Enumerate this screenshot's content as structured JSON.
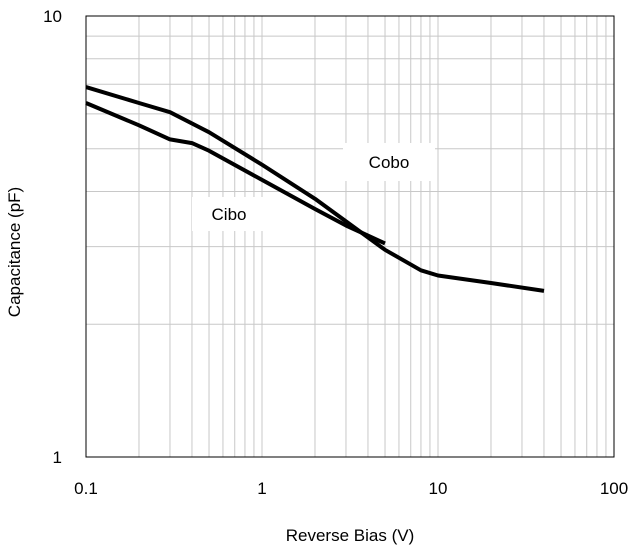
{
  "chart_data": {
    "type": "line",
    "title": "",
    "xlabel": "Reverse Bias (V)",
    "ylabel": "Capacitance (pF)",
    "x_scale": "log",
    "y_scale": "log",
    "xlim": [
      0.1,
      100
    ],
    "ylim": [
      1,
      10
    ],
    "x_ticks": [
      {
        "value": 0.1,
        "label": "0.1"
      },
      {
        "value": 1,
        "label": "1"
      },
      {
        "value": 10,
        "label": "10"
      },
      {
        "value": 100,
        "label": "100"
      }
    ],
    "y_ticks": [
      {
        "value": 1,
        "label": "1"
      },
      {
        "value": 10,
        "label": "10"
      }
    ],
    "grid": true,
    "colors": {
      "line": "#000000",
      "grid": "#c8c8c8",
      "frame": "#000000"
    },
    "series": [
      {
        "name": "Cobo",
        "x": [
          0.1,
          0.2,
          0.3,
          0.5,
          1,
          2,
          5,
          8,
          10,
          20,
          40
        ],
        "y": [
          6.9,
          6.35,
          6.05,
          5.45,
          4.6,
          3.85,
          2.95,
          2.65,
          2.58,
          2.48,
          2.38
        ]
      },
      {
        "name": "Cibo",
        "x": [
          0.1,
          0.2,
          0.3,
          0.4,
          0.5,
          1,
          2,
          3,
          5
        ],
        "y": [
          6.35,
          5.65,
          5.25,
          5.15,
          4.95,
          4.25,
          3.65,
          3.35,
          3.05
        ]
      }
    ],
    "annotations": [
      {
        "text": "Cobo",
        "series": "Cobo"
      },
      {
        "text": "Cibo",
        "series": "Cibo"
      }
    ]
  }
}
